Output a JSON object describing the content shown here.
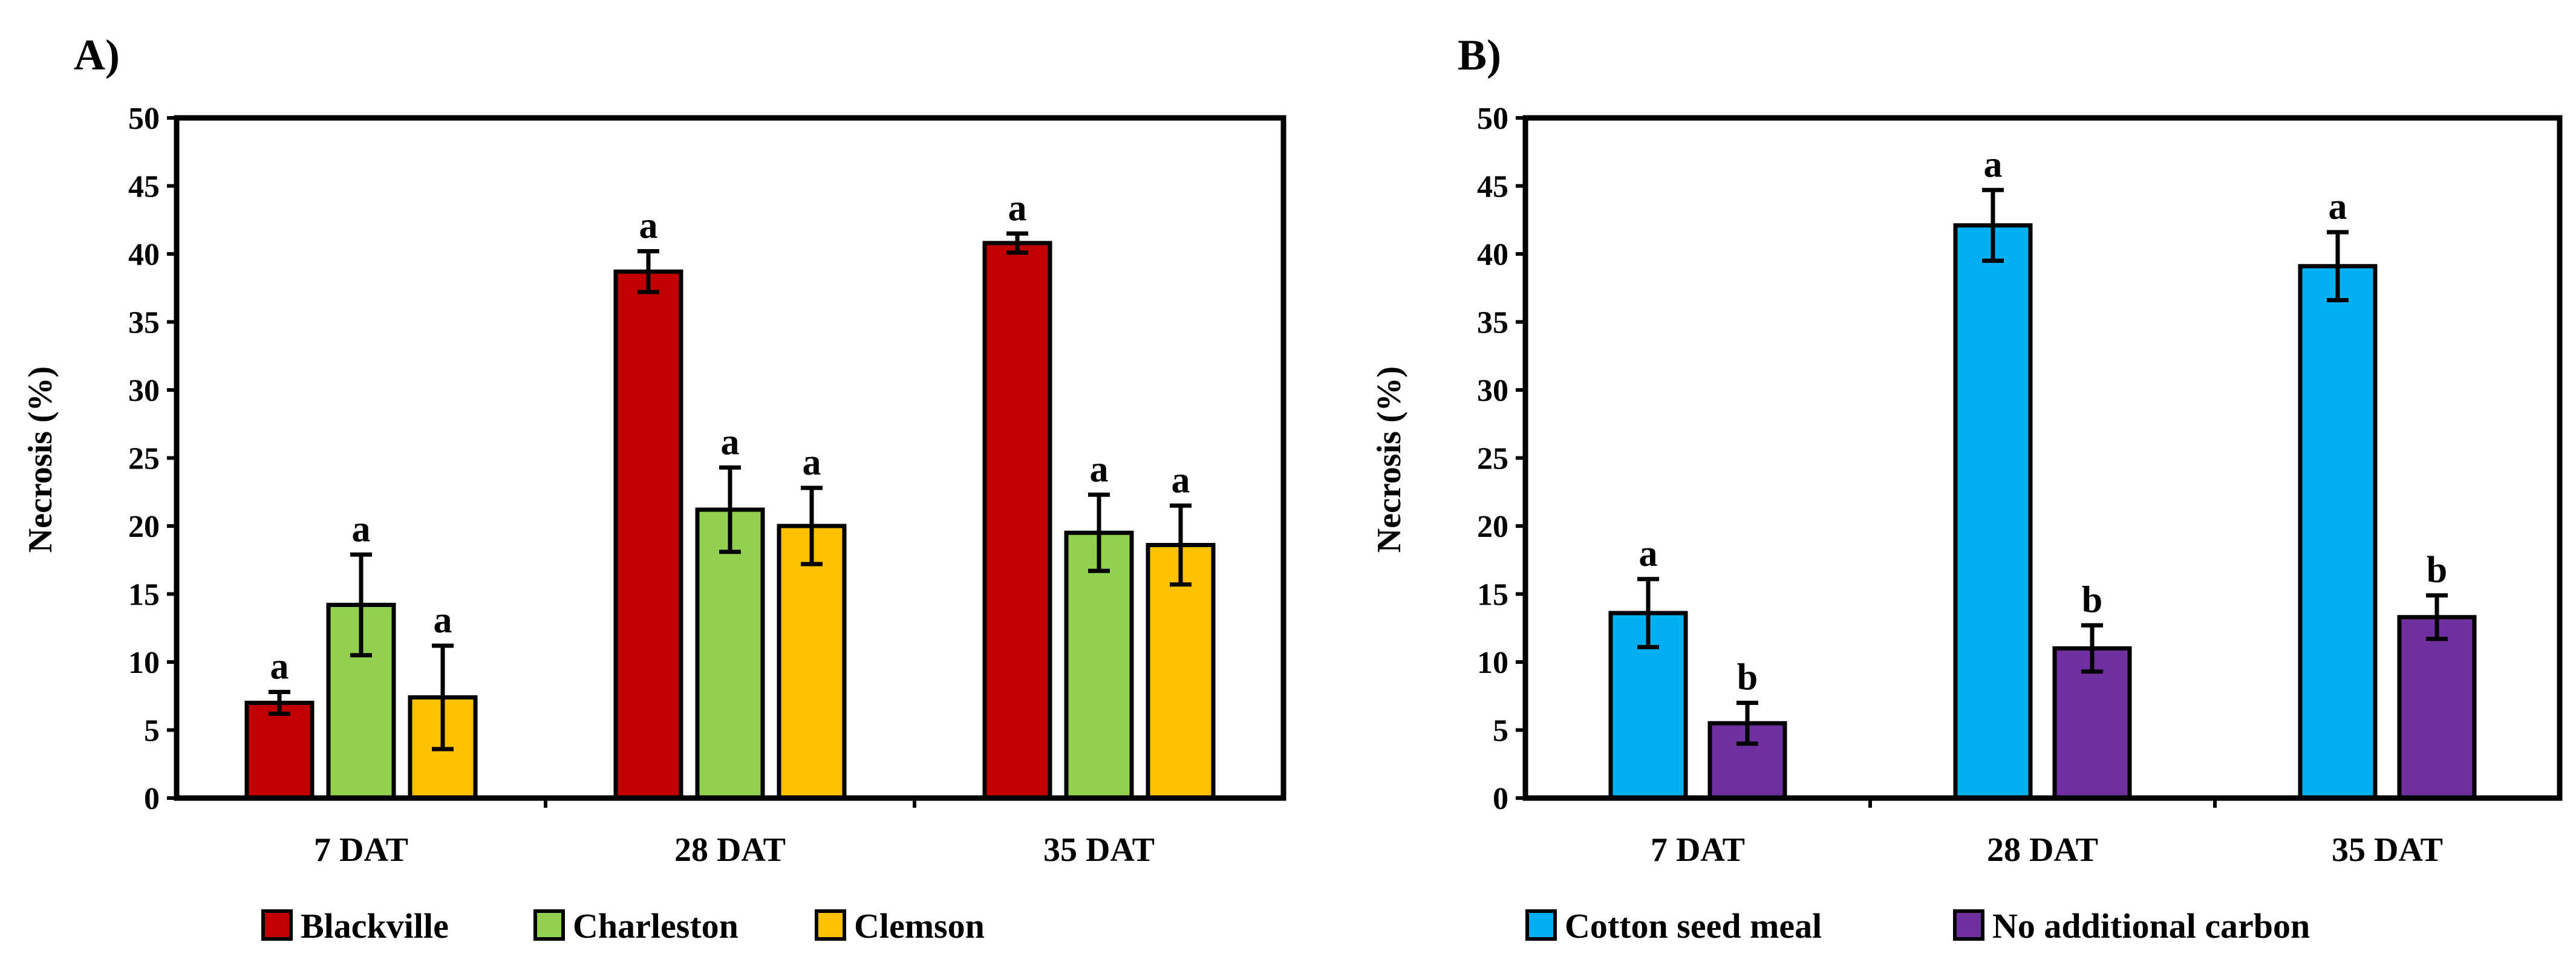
{
  "chart_data": [
    {
      "type": "bar",
      "panel_label": "A)",
      "title": "",
      "xlabel": "",
      "ylabel": "Necrosis (%)",
      "ylim": [
        0,
        50
      ],
      "yticks": [
        0,
        5,
        10,
        15,
        20,
        25,
        30,
        35,
        40,
        45,
        50
      ],
      "categories": [
        "7 DAT",
        "28 DAT",
        "35 DAT"
      ],
      "legend_position": "bottom",
      "series": [
        {
          "name": "Blackville",
          "color": "#C00000",
          "values": [
            7.0,
            38.7,
            40.8
          ],
          "errors": [
            0.8,
            1.5,
            0.7
          ],
          "letters": [
            "a",
            "a",
            "a"
          ]
        },
        {
          "name": "Charleston",
          "color": "#92D050",
          "values": [
            14.2,
            21.2,
            19.5
          ],
          "errors": [
            3.7,
            3.1,
            2.8
          ],
          "letters": [
            "a",
            "a",
            "a"
          ]
        },
        {
          "name": "Clemson",
          "color": "#FFC000",
          "values": [
            7.4,
            20.0,
            18.6
          ],
          "errors": [
            3.8,
            2.8,
            2.9
          ],
          "letters": [
            "a",
            "a",
            "a"
          ]
        }
      ]
    },
    {
      "type": "bar",
      "panel_label": "B)",
      "title": "",
      "xlabel": "",
      "ylabel": "Necrosis (%)",
      "ylim": [
        0,
        50
      ],
      "yticks": [
        0,
        5,
        10,
        15,
        20,
        25,
        30,
        35,
        40,
        45,
        50
      ],
      "categories": [
        "7 DAT",
        "28 DAT",
        "35 DAT"
      ],
      "legend_position": "bottom",
      "series": [
        {
          "name": "Cotton seed meal",
          "color": "#00B0F0",
          "values": [
            13.6,
            42.1,
            39.1
          ],
          "errors": [
            2.5,
            2.6,
            2.5
          ],
          "letters": [
            "a",
            "a",
            "a"
          ]
        },
        {
          "name": "No additional carbon",
          "color": "#7030A0",
          "values": [
            5.5,
            11.0,
            13.3
          ],
          "errors": [
            1.5,
            1.7,
            1.6
          ],
          "letters": [
            "b",
            "b",
            "b"
          ]
        }
      ]
    }
  ]
}
